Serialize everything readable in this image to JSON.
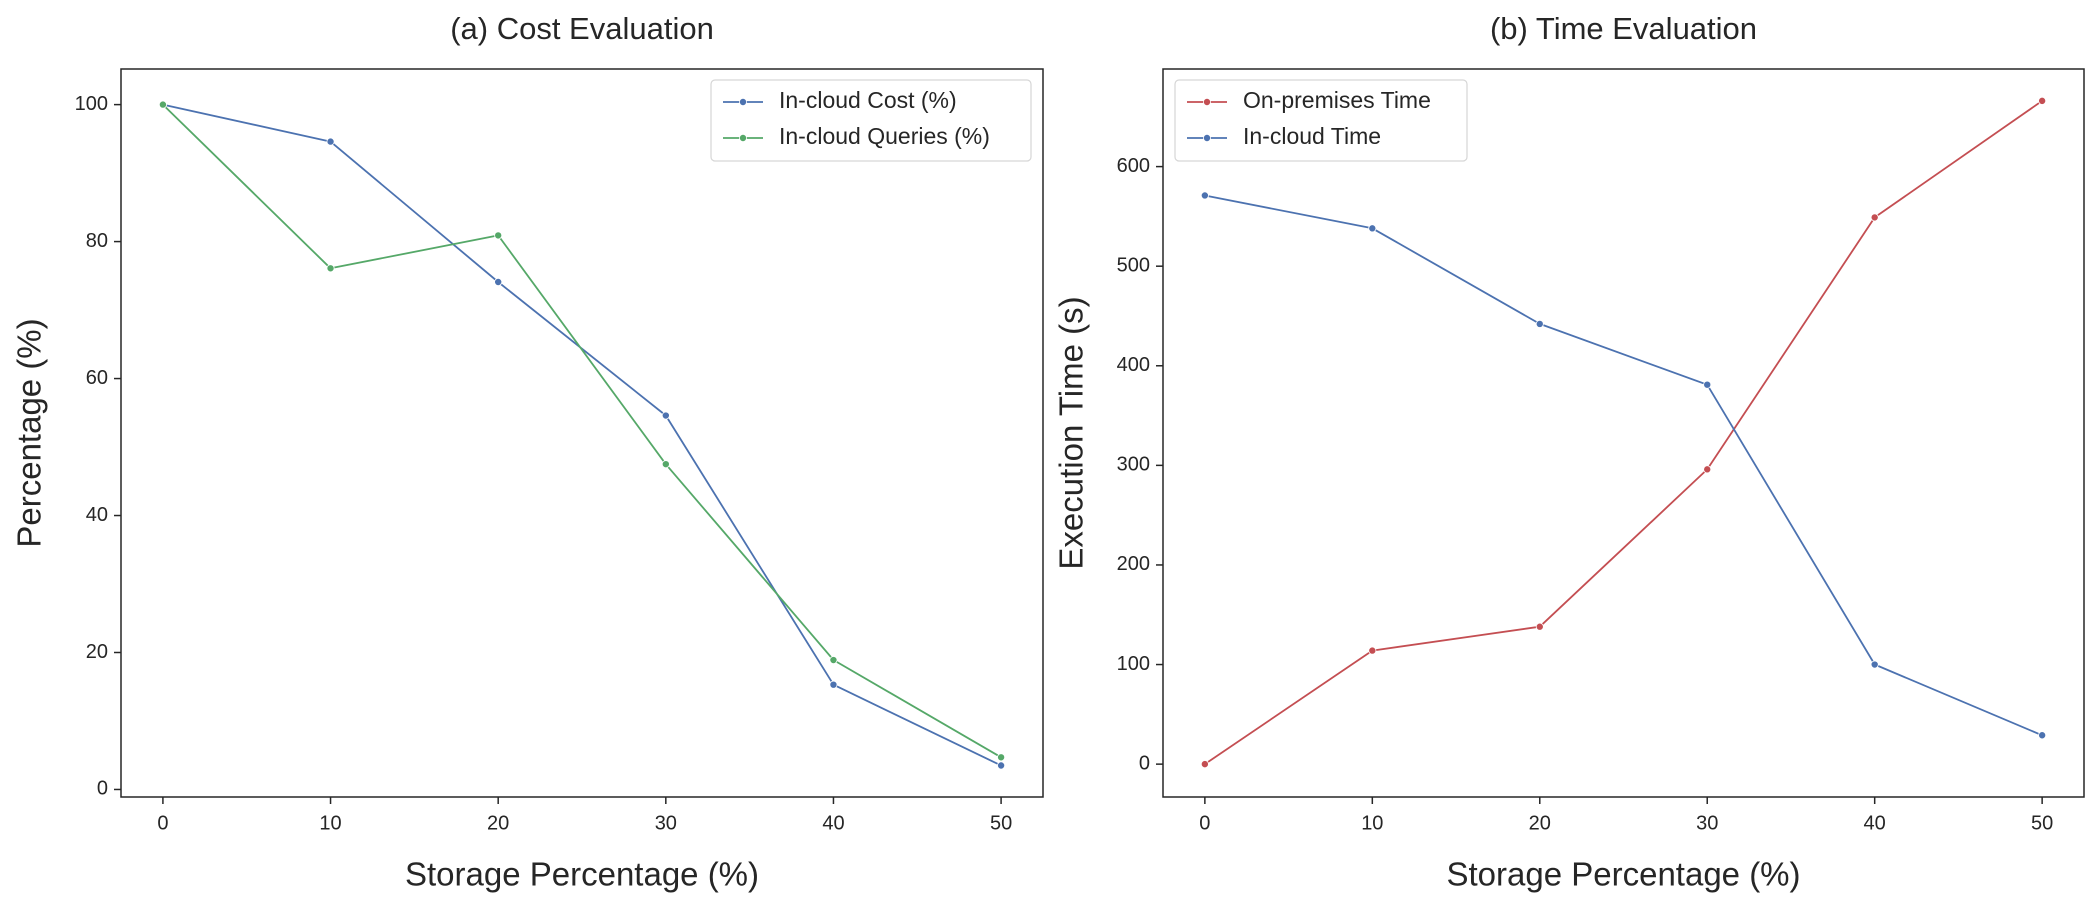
{
  "chart_data": [
    {
      "type": "line",
      "title": "(a) Cost Evaluation",
      "xlabel": "Storage Percentage (%)",
      "ylabel": "Percentage (%)",
      "x": [
        0,
        10,
        20,
        30,
        40,
        50
      ],
      "xticks": [
        0,
        10,
        20,
        30,
        40,
        50
      ],
      "yticks": [
        0,
        20,
        40,
        60,
        80,
        100
      ],
      "xlim": [
        -2.5,
        52.5
      ],
      "ylim": [
        -1.1,
        105.2
      ],
      "legend_position": "top-right",
      "grid": false,
      "series": [
        {
          "name": "In-cloud Cost (%)",
          "color": "#4c72b0",
          "values": [
            100,
            94.6,
            74.1,
            54.6,
            15.3,
            3.5
          ]
        },
        {
          "name": "In-cloud Queries (%)",
          "color": "#55a868",
          "values": [
            100,
            76.1,
            80.9,
            47.5,
            18.9,
            4.7
          ]
        }
      ]
    },
    {
      "type": "line",
      "title": "(b) Time Evaluation",
      "xlabel": "Storage Percentage (%)",
      "ylabel": "Execution Time (s)",
      "x": [
        0,
        10,
        20,
        30,
        40,
        50
      ],
      "xticks": [
        0,
        10,
        20,
        30,
        40,
        50
      ],
      "yticks": [
        0,
        100,
        200,
        300,
        400,
        500,
        600
      ],
      "xlim": [
        -2.5,
        52.5
      ],
      "ylim": [
        -33,
        698
      ],
      "legend_position": "top-left",
      "grid": false,
      "series": [
        {
          "name": "On-premises Time",
          "color": "#c44e52",
          "values": [
            0,
            114,
            138,
            296,
            549,
            666
          ]
        },
        {
          "name": "In-cloud Time",
          "color": "#4c72b0",
          "values": [
            571,
            538,
            442,
            381,
            100,
            29
          ]
        }
      ]
    }
  ]
}
